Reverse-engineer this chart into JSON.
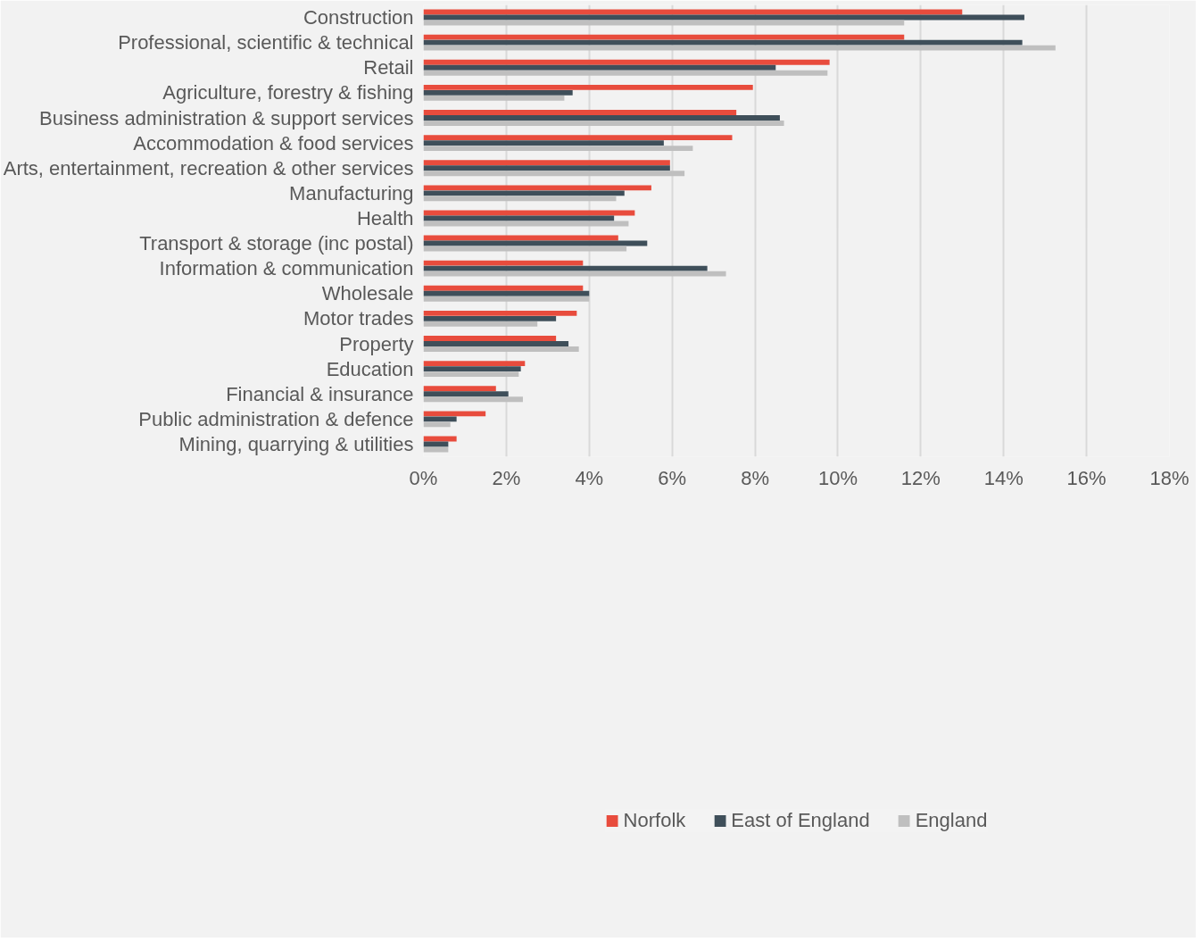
{
  "chart_data": {
    "type": "bar",
    "orientation": "horizontal",
    "categories": [
      "Construction",
      "Professional, scientific & technical",
      "Retail",
      "Agriculture, forestry & fishing",
      "Business administration & support services",
      "Accommodation & food services",
      "Arts, entertainment, recreation & other services",
      "Manufacturing",
      "Health",
      "Transport & storage (inc postal)",
      "Information & communication",
      "Wholesale",
      "Motor trades",
      "Property",
      "Education",
      "Financial & insurance",
      "Public administration & defence",
      "Mining, quarrying & utilities"
    ],
    "series": [
      {
        "name": "Norfolk",
        "color": "#e84c3d",
        "values": [
          13.0,
          11.6,
          9.8,
          7.95,
          7.55,
          7.45,
          5.95,
          5.5,
          5.1,
          4.7,
          3.85,
          3.85,
          3.7,
          3.2,
          2.45,
          1.75,
          1.5,
          0.8
        ]
      },
      {
        "name": "East of England",
        "color": "#3f4f5a",
        "values": [
          14.5,
          14.45,
          8.5,
          3.6,
          8.6,
          5.8,
          5.95,
          4.85,
          4.6,
          5.4,
          6.85,
          4.0,
          3.2,
          3.5,
          2.35,
          2.05,
          0.8,
          0.6
        ]
      },
      {
        "name": "England",
        "color": "#bfbfbf",
        "values": [
          11.6,
          15.25,
          9.75,
          3.4,
          8.7,
          6.5,
          6.3,
          4.65,
          4.95,
          4.9,
          7.3,
          4.0,
          2.75,
          3.75,
          2.3,
          2.4,
          0.65,
          0.6
        ]
      }
    ],
    "xlim": [
      0,
      18
    ],
    "xticks": [
      {
        "value": 0,
        "label": "0%"
      },
      {
        "value": 2,
        "label": "2%"
      },
      {
        "value": 4,
        "label": "4%"
      },
      {
        "value": 6,
        "label": "6%"
      },
      {
        "value": 8,
        "label": "8%"
      },
      {
        "value": 10,
        "label": "10%"
      },
      {
        "value": 12,
        "label": "12%"
      },
      {
        "value": 14,
        "label": "14%"
      },
      {
        "value": 16,
        "label": "16%"
      },
      {
        "value": 18,
        "label": "18%"
      }
    ],
    "grid": "x",
    "legend": "bottom"
  }
}
